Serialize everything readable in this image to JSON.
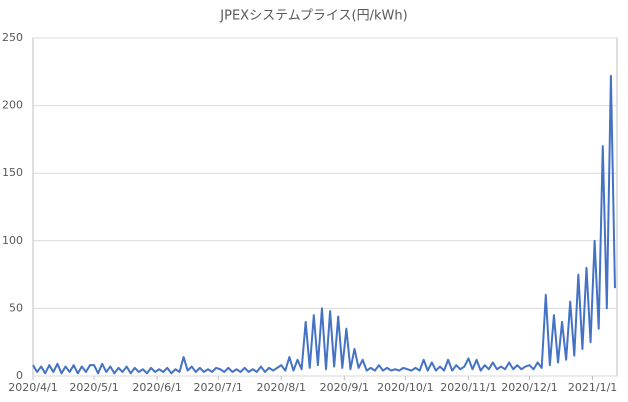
{
  "chart_data": {
    "type": "line",
    "title": "JPEXシステムプライス(円/kWh)",
    "x": [
      "2020/4/1",
      "2020/4/3",
      "2020/4/5",
      "2020/4/7",
      "2020/4/9",
      "2020/4/11",
      "2020/4/13",
      "2020/4/15",
      "2020/4/17",
      "2020/4/19",
      "2020/4/21",
      "2020/4/23",
      "2020/4/25",
      "2020/4/27",
      "2020/4/29",
      "2020/5/1",
      "2020/5/3",
      "2020/5/5",
      "2020/5/7",
      "2020/5/9",
      "2020/5/11",
      "2020/5/13",
      "2020/5/15",
      "2020/5/17",
      "2020/5/19",
      "2020/5/21",
      "2020/5/23",
      "2020/5/25",
      "2020/5/27",
      "2020/5/29",
      "2020/5/31",
      "2020/6/2",
      "2020/6/4",
      "2020/6/6",
      "2020/6/8",
      "2020/6/10",
      "2020/6/12",
      "2020/6/14",
      "2020/6/16",
      "2020/6/18",
      "2020/6/20",
      "2020/6/22",
      "2020/6/24",
      "2020/6/26",
      "2020/6/28",
      "2020/6/30",
      "2020/7/2",
      "2020/7/4",
      "2020/7/6",
      "2020/7/8",
      "2020/7/10",
      "2020/7/12",
      "2020/7/14",
      "2020/7/16",
      "2020/7/18",
      "2020/7/20",
      "2020/7/22",
      "2020/7/24",
      "2020/7/26",
      "2020/7/28",
      "2020/7/30",
      "2020/8/1",
      "2020/8/3",
      "2020/8/5",
      "2020/8/7",
      "2020/8/9",
      "2020/8/11",
      "2020/8/13",
      "2020/8/15",
      "2020/8/17",
      "2020/8/19",
      "2020/8/21",
      "2020/8/23",
      "2020/8/25",
      "2020/8/27",
      "2020/8/29",
      "2020/8/31",
      "2020/9/2",
      "2020/9/4",
      "2020/9/6",
      "2020/9/8",
      "2020/9/10",
      "2020/9/12",
      "2020/9/14",
      "2020/9/16",
      "2020/9/18",
      "2020/9/20",
      "2020/9/22",
      "2020/9/24",
      "2020/9/26",
      "2020/9/28",
      "2020/9/30",
      "2020/10/2",
      "2020/10/4",
      "2020/10/6",
      "2020/10/8",
      "2020/10/10",
      "2020/10/12",
      "2020/10/14",
      "2020/10/16",
      "2020/10/18",
      "2020/10/20",
      "2020/10/22",
      "2020/10/24",
      "2020/10/26",
      "2020/10/28",
      "2020/10/30",
      "2020/11/1",
      "2020/11/3",
      "2020/11/5",
      "2020/11/7",
      "2020/11/9",
      "2020/11/11",
      "2020/11/13",
      "2020/11/15",
      "2020/11/17",
      "2020/11/19",
      "2020/11/21",
      "2020/11/23",
      "2020/11/25",
      "2020/11/27",
      "2020/11/29",
      "2020/12/1",
      "2020/12/3",
      "2020/12/5",
      "2020/12/7",
      "2020/12/9",
      "2020/12/11",
      "2020/12/13",
      "2020/12/15",
      "2020/12/17",
      "2020/12/19",
      "2020/12/21",
      "2020/12/23",
      "2020/12/25",
      "2020/12/27",
      "2020/12/29",
      "2020/12/31",
      "2021/1/2",
      "2021/1/4",
      "2021/1/6",
      "2021/1/8",
      "2021/1/10",
      "2021/1/12"
    ],
    "series": [
      {
        "color": "#4472c4",
        "values": [
          8,
          3,
          7,
          2,
          8,
          3,
          9,
          2,
          7,
          3,
          8,
          2,
          7,
          3,
          8,
          8,
          2,
          9,
          3,
          7,
          2,
          6,
          3,
          7,
          2,
          6,
          3,
          5,
          2,
          6,
          3,
          5,
          3,
          6,
          2,
          5,
          3,
          14,
          4,
          7,
          3,
          6,
          3,
          5,
          3,
          6,
          5,
          3,
          6,
          3,
          5,
          3,
          6,
          3,
          5,
          3,
          7,
          3,
          6,
          4,
          6,
          8,
          4,
          14,
          4,
          12,
          5,
          40,
          6,
          45,
          8,
          50,
          5,
          48,
          7,
          44,
          6,
          35,
          5,
          20,
          6,
          12,
          4,
          6,
          4,
          8,
          4,
          6,
          4,
          5,
          4,
          6,
          5,
          4,
          6,
          4,
          12,
          4,
          10,
          4,
          7,
          4,
          12,
          4,
          8,
          5,
          7,
          13,
          5,
          12,
          4,
          8,
          5,
          10,
          5,
          7,
          5,
          10,
          5,
          8,
          5,
          7,
          8,
          5,
          10,
          6,
          60,
          8,
          45,
          10,
          40,
          12,
          55,
          15,
          75,
          20,
          80,
          25,
          100,
          35,
          170,
          50,
          222,
          65
        ]
      }
    ],
    "xlim": [
      "2020/4/1",
      "2021/1/13"
    ],
    "xticks": [
      "2020/4/1",
      "2020/5/1",
      "2020/6/1",
      "2020/7/1",
      "2020/8/1",
      "2020/9/1",
      "2020/10/1",
      "2020/11/1",
      "2020/12/1",
      "2021/1/1"
    ],
    "ylim": [
      0,
      250
    ],
    "yticks": [
      0,
      50,
      100,
      150,
      200,
      250
    ],
    "grid": true
  }
}
